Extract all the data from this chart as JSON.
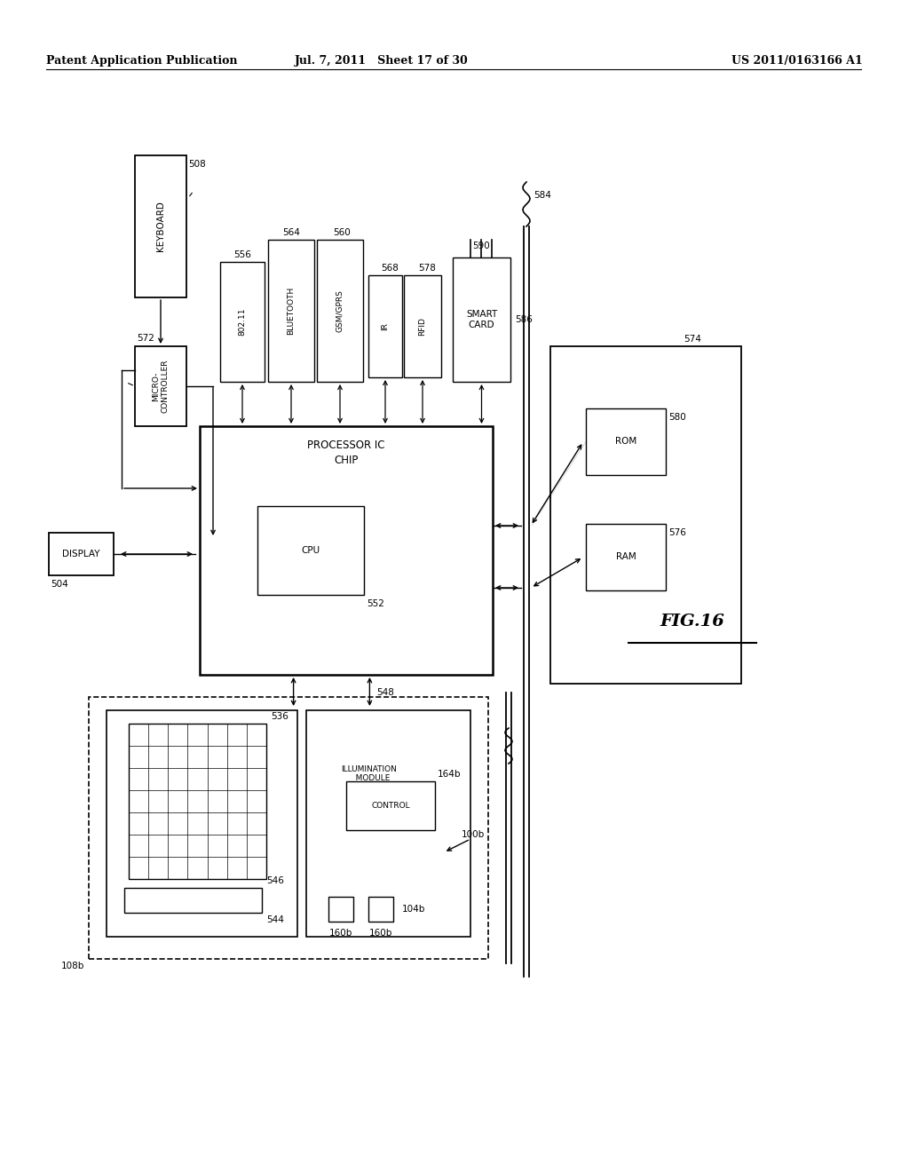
{
  "bg_color": "#ffffff",
  "header_left": "Patent Application Publication",
  "header_mid": "Jul. 7, 2011   Sheet 17 of 30",
  "header_right": "US 2011/0163166 A1",
  "fig_label": "FIG.16"
}
